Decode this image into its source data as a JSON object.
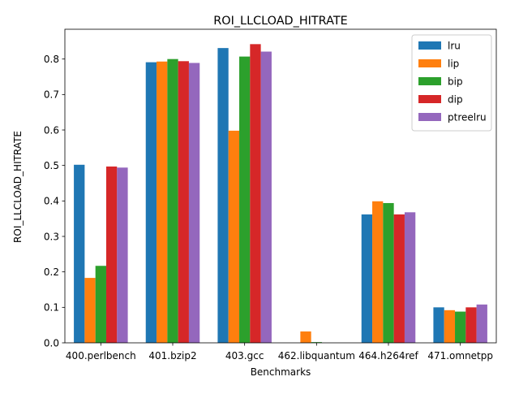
{
  "chart_data": {
    "type": "bar",
    "title": "ROI_LLCLOAD_HITRATE",
    "xlabel": "Benchmarks",
    "ylabel": "ROI_LLCLOAD_HITRATE",
    "categories": [
      "400.perlbench",
      "401.bzip2",
      "403.gcc",
      "462.libquantum",
      "464.h264ref",
      "471.omnetpp"
    ],
    "series": [
      {
        "name": "lru",
        "color": "#1f77b4",
        "values": [
          0.502,
          0.791,
          0.831,
          0.0,
          0.362,
          0.1
        ]
      },
      {
        "name": "lip",
        "color": "#ff7f0e",
        "values": [
          0.183,
          0.793,
          0.598,
          0.032,
          0.399,
          0.092
        ]
      },
      {
        "name": "bip",
        "color": "#2ca02c",
        "values": [
          0.217,
          0.8,
          0.807,
          0.002,
          0.394,
          0.088
        ]
      },
      {
        "name": "dip",
        "color": "#d62728",
        "values": [
          0.497,
          0.794,
          0.842,
          0.0,
          0.362,
          0.1
        ]
      },
      {
        "name": "ptreelru",
        "color": "#9467bd",
        "values": [
          0.494,
          0.789,
          0.821,
          0.0,
          0.368,
          0.108
        ]
      }
    ],
    "yticks": [
      "0.0",
      "0.1",
      "0.2",
      "0.3",
      "0.4",
      "0.5",
      "0.6",
      "0.7",
      "0.8"
    ],
    "ylim": [
      0,
      0.884
    ],
    "grid": false,
    "legend_position": "top-right"
  }
}
